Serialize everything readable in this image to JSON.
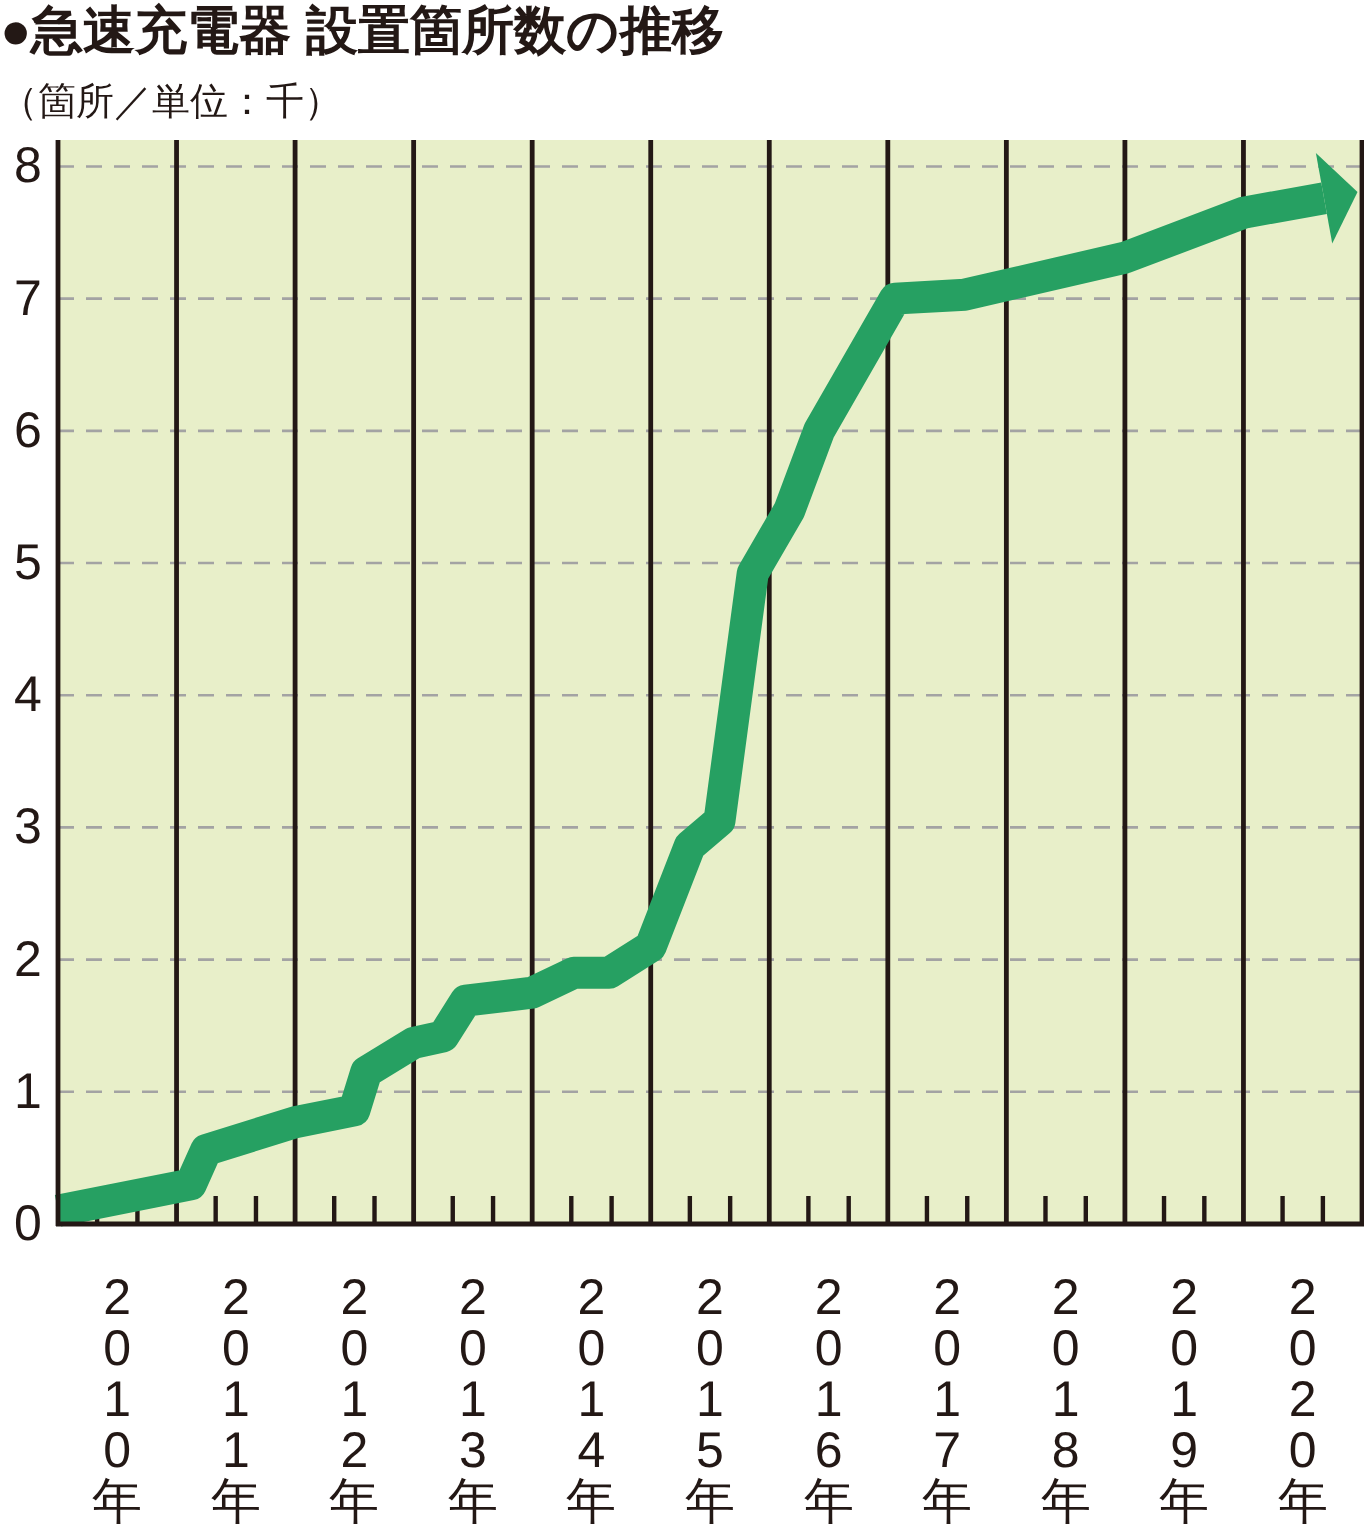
{
  "chart_data": {
    "type": "line",
    "title": "●急速充電器 設置箇所数の推移",
    "subtitle": "（箇所／単位：千）",
    "x": [
      2010.0,
      2011.12,
      2011.25,
      2012.0,
      2012.5,
      2012.6,
      2013.0,
      2013.25,
      2013.44,
      2014.0,
      2014.35,
      2014.65,
      2015.0,
      2015.33,
      2015.58,
      2015.86,
      2016.17,
      2016.42,
      2017.06,
      2017.65,
      2019.0,
      2020.0,
      2020.68
    ],
    "values": [
      0.1,
      0.3,
      0.56,
      0.77,
      0.86,
      1.15,
      1.37,
      1.42,
      1.69,
      1.75,
      1.9,
      1.9,
      2.1,
      2.86,
      3.05,
      4.92,
      5.4,
      6.0,
      7.0,
      7.03,
      7.31,
      7.65,
      7.76
    ],
    "color": "#26a062",
    "xlim": [
      2010,
      2021
    ],
    "xticks": [
      {
        "value": 2010.33,
        "label": null
      },
      {
        "value": 2010.5,
        "label": "2010年"
      },
      {
        "value": 2010.67,
        "label": null
      },
      {
        "value": 2011.33,
        "label": null
      },
      {
        "value": 2011.5,
        "label": "2011年"
      },
      {
        "value": 2011.67,
        "label": null
      },
      {
        "value": 2012.33,
        "label": null
      },
      {
        "value": 2012.5,
        "label": "2012年"
      },
      {
        "value": 2012.67,
        "label": null
      },
      {
        "value": 2013.33,
        "label": null
      },
      {
        "value": 2013.5,
        "label": "2013年"
      },
      {
        "value": 2013.67,
        "label": null
      },
      {
        "value": 2014.33,
        "label": null
      },
      {
        "value": 2014.5,
        "label": "2014年"
      },
      {
        "value": 2014.67,
        "label": null
      },
      {
        "value": 2015.33,
        "label": null
      },
      {
        "value": 2015.5,
        "label": "2015年"
      },
      {
        "value": 2015.67,
        "label": null
      },
      {
        "value": 2016.33,
        "label": null
      },
      {
        "value": 2016.5,
        "label": "2016年"
      },
      {
        "value": 2016.67,
        "label": null
      },
      {
        "value": 2017.33,
        "label": null
      },
      {
        "value": 2017.5,
        "label": "2017年"
      },
      {
        "value": 2017.67,
        "label": null
      },
      {
        "value": 2018.33,
        "label": null
      },
      {
        "value": 2018.5,
        "label": "2018年"
      },
      {
        "value": 2018.67,
        "label": null
      },
      {
        "value": 2019.33,
        "label": null
      },
      {
        "value": 2019.5,
        "label": "2019年"
      },
      {
        "value": 2019.67,
        "label": null
      },
      {
        "value": 2020.33,
        "label": null
      },
      {
        "value": 2020.5,
        "label": "2020年"
      },
      {
        "value": 2020.67,
        "label": null
      }
    ],
    "ylim": [
      0,
      8.2
    ],
    "yticks": [
      0,
      1,
      2,
      3,
      4,
      5,
      6,
      7,
      8
    ],
    "grid": "y",
    "ref_lines": [
      {
        "axis": "x",
        "value": 2011,
        "color": "#231815"
      },
      {
        "axis": "x",
        "value": 2012,
        "color": "#231815"
      },
      {
        "axis": "x",
        "value": 2013,
        "color": "#231815"
      },
      {
        "axis": "x",
        "value": 2014,
        "color": "#231815"
      },
      {
        "axis": "x",
        "value": 2015,
        "color": "#231815"
      },
      {
        "axis": "x",
        "value": 2016,
        "color": "#231815"
      },
      {
        "axis": "x",
        "value": 2017,
        "color": "#231815"
      },
      {
        "axis": "x",
        "value": 2018,
        "color": "#231815"
      },
      {
        "axis": "x",
        "value": 2019,
        "color": "#231815"
      },
      {
        "axis": "x",
        "value": 2020,
        "color": "#231815"
      }
    ]
  }
}
